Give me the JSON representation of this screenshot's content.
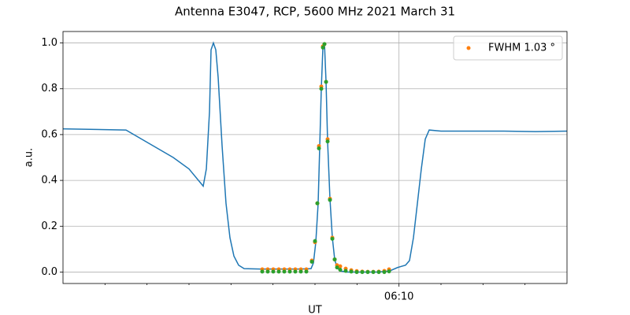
{
  "chart_data": {
    "type": "line",
    "title": "Antenna E3047, RCP, 5600 MHz 2021 March 31",
    "x_label": "UT",
    "y_label": "a.u.",
    "xlim": [
      362,
      374
    ],
    "ylim": [
      -0.05,
      1.05
    ],
    "xticks": [
      {
        "value": 370,
        "label": "06:10"
      }
    ],
    "xminorticks": [
      363,
      364,
      365,
      366,
      367,
      368,
      369,
      371,
      372,
      373
    ],
    "yticks": [
      {
        "value": 0,
        "label": "0.0"
      },
      0.2,
      0.4,
      0.6,
      0.8,
      {
        "value": 1,
        "label": "1.0"
      }
    ],
    "grid": true,
    "legend": "upper right",
    "series": [
      {
        "color": "#1f77b4",
        "kind": "line",
        "x": [
          362,
          363.5,
          363.875,
          364.625,
          365,
          365.338,
          365.413,
          365.488,
          365.525,
          365.581,
          365.638,
          365.694,
          365.788,
          365.881,
          365.975,
          366.069,
          366.181,
          366.313,
          366.688,
          367.25,
          367.625,
          367.906,
          367.963,
          368.019,
          368.075,
          368.113,
          368.15,
          368.188,
          368.225,
          368.263,
          368.3,
          368.356,
          368.413,
          368.469,
          368.525,
          368.6,
          368.75,
          369.125,
          369.5,
          369.781,
          369.969,
          370.156,
          370.25,
          370.344,
          370.438,
          370.531,
          370.625,
          370.719,
          371,
          371.75,
          372.5,
          373.25,
          374
        ],
        "values": [
          0.625,
          0.62,
          0.58,
          0.5,
          0.45,
          0.375,
          0.45,
          0.7,
          0.97,
          1.0,
          0.97,
          0.85,
          0.55,
          0.3,
          0.15,
          0.07,
          0.03,
          0.015,
          0.013,
          0.013,
          0.013,
          0.015,
          0.04,
          0.13,
          0.3,
          0.55,
          0.8,
          0.98,
          1.0,
          0.83,
          0.57,
          0.32,
          0.15,
          0.055,
          0.02,
          0.005,
          0.0,
          0.0,
          0.0,
          0.005,
          0.02,
          0.03,
          0.05,
          0.15,
          0.3,
          0.45,
          0.58,
          0.62,
          0.615,
          0.615,
          0.615,
          0.613,
          0.615
        ]
      },
      {
        "name": "FWHM 1.03 °",
        "color": "#ff7f0e",
        "kind": "scatter",
        "x": [
          366.744,
          366.875,
          367.006,
          367.138,
          367.269,
          367.4,
          367.531,
          367.663,
          367.794,
          367.925,
          368,
          368.056,
          368.094,
          368.15,
          368.188,
          368.225,
          368.263,
          368.3,
          368.356,
          368.413,
          368.469,
          368.525,
          368.6,
          368.731,
          368.863,
          368.994,
          369.125,
          369.256,
          369.388,
          369.519,
          369.65,
          369.763
        ],
        "values": [
          0.012,
          0.012,
          0.012,
          0.012,
          0.012,
          0.012,
          0.012,
          0.012,
          0.012,
          0.05,
          0.13,
          0.3,
          0.55,
          0.81,
          0.985,
          0.995,
          0.83,
          0.58,
          0.32,
          0.15,
          0.055,
          0.03,
          0.025,
          0.015,
          0.008,
          0.004,
          0.002,
          0.001,
          0.001,
          0.002,
          0.005,
          0.012
        ]
      },
      {
        "color": "#2ca02c",
        "kind": "scatter",
        "x": [
          366.744,
          366.875,
          367.006,
          367.138,
          367.269,
          367.4,
          367.531,
          367.663,
          367.794,
          367.925,
          368,
          368.056,
          368.094,
          368.15,
          368.188,
          368.225,
          368.263,
          368.3,
          368.356,
          368.413,
          368.469,
          368.525,
          368.6,
          368.731,
          368.863,
          368.994,
          369.125,
          369.256,
          369.388,
          369.519,
          369.65,
          369.763
        ],
        "values": [
          0.002,
          0.002,
          0.002,
          0.002,
          0.002,
          0.002,
          0.002,
          0.002,
          0.002,
          0.045,
          0.135,
          0.3,
          0.54,
          0.8,
          0.98,
          0.995,
          0.83,
          0.57,
          0.315,
          0.145,
          0.055,
          0.02,
          0.01,
          0.005,
          0.002,
          0,
          0,
          0,
          0,
          0,
          0,
          0.003
        ]
      }
    ]
  }
}
